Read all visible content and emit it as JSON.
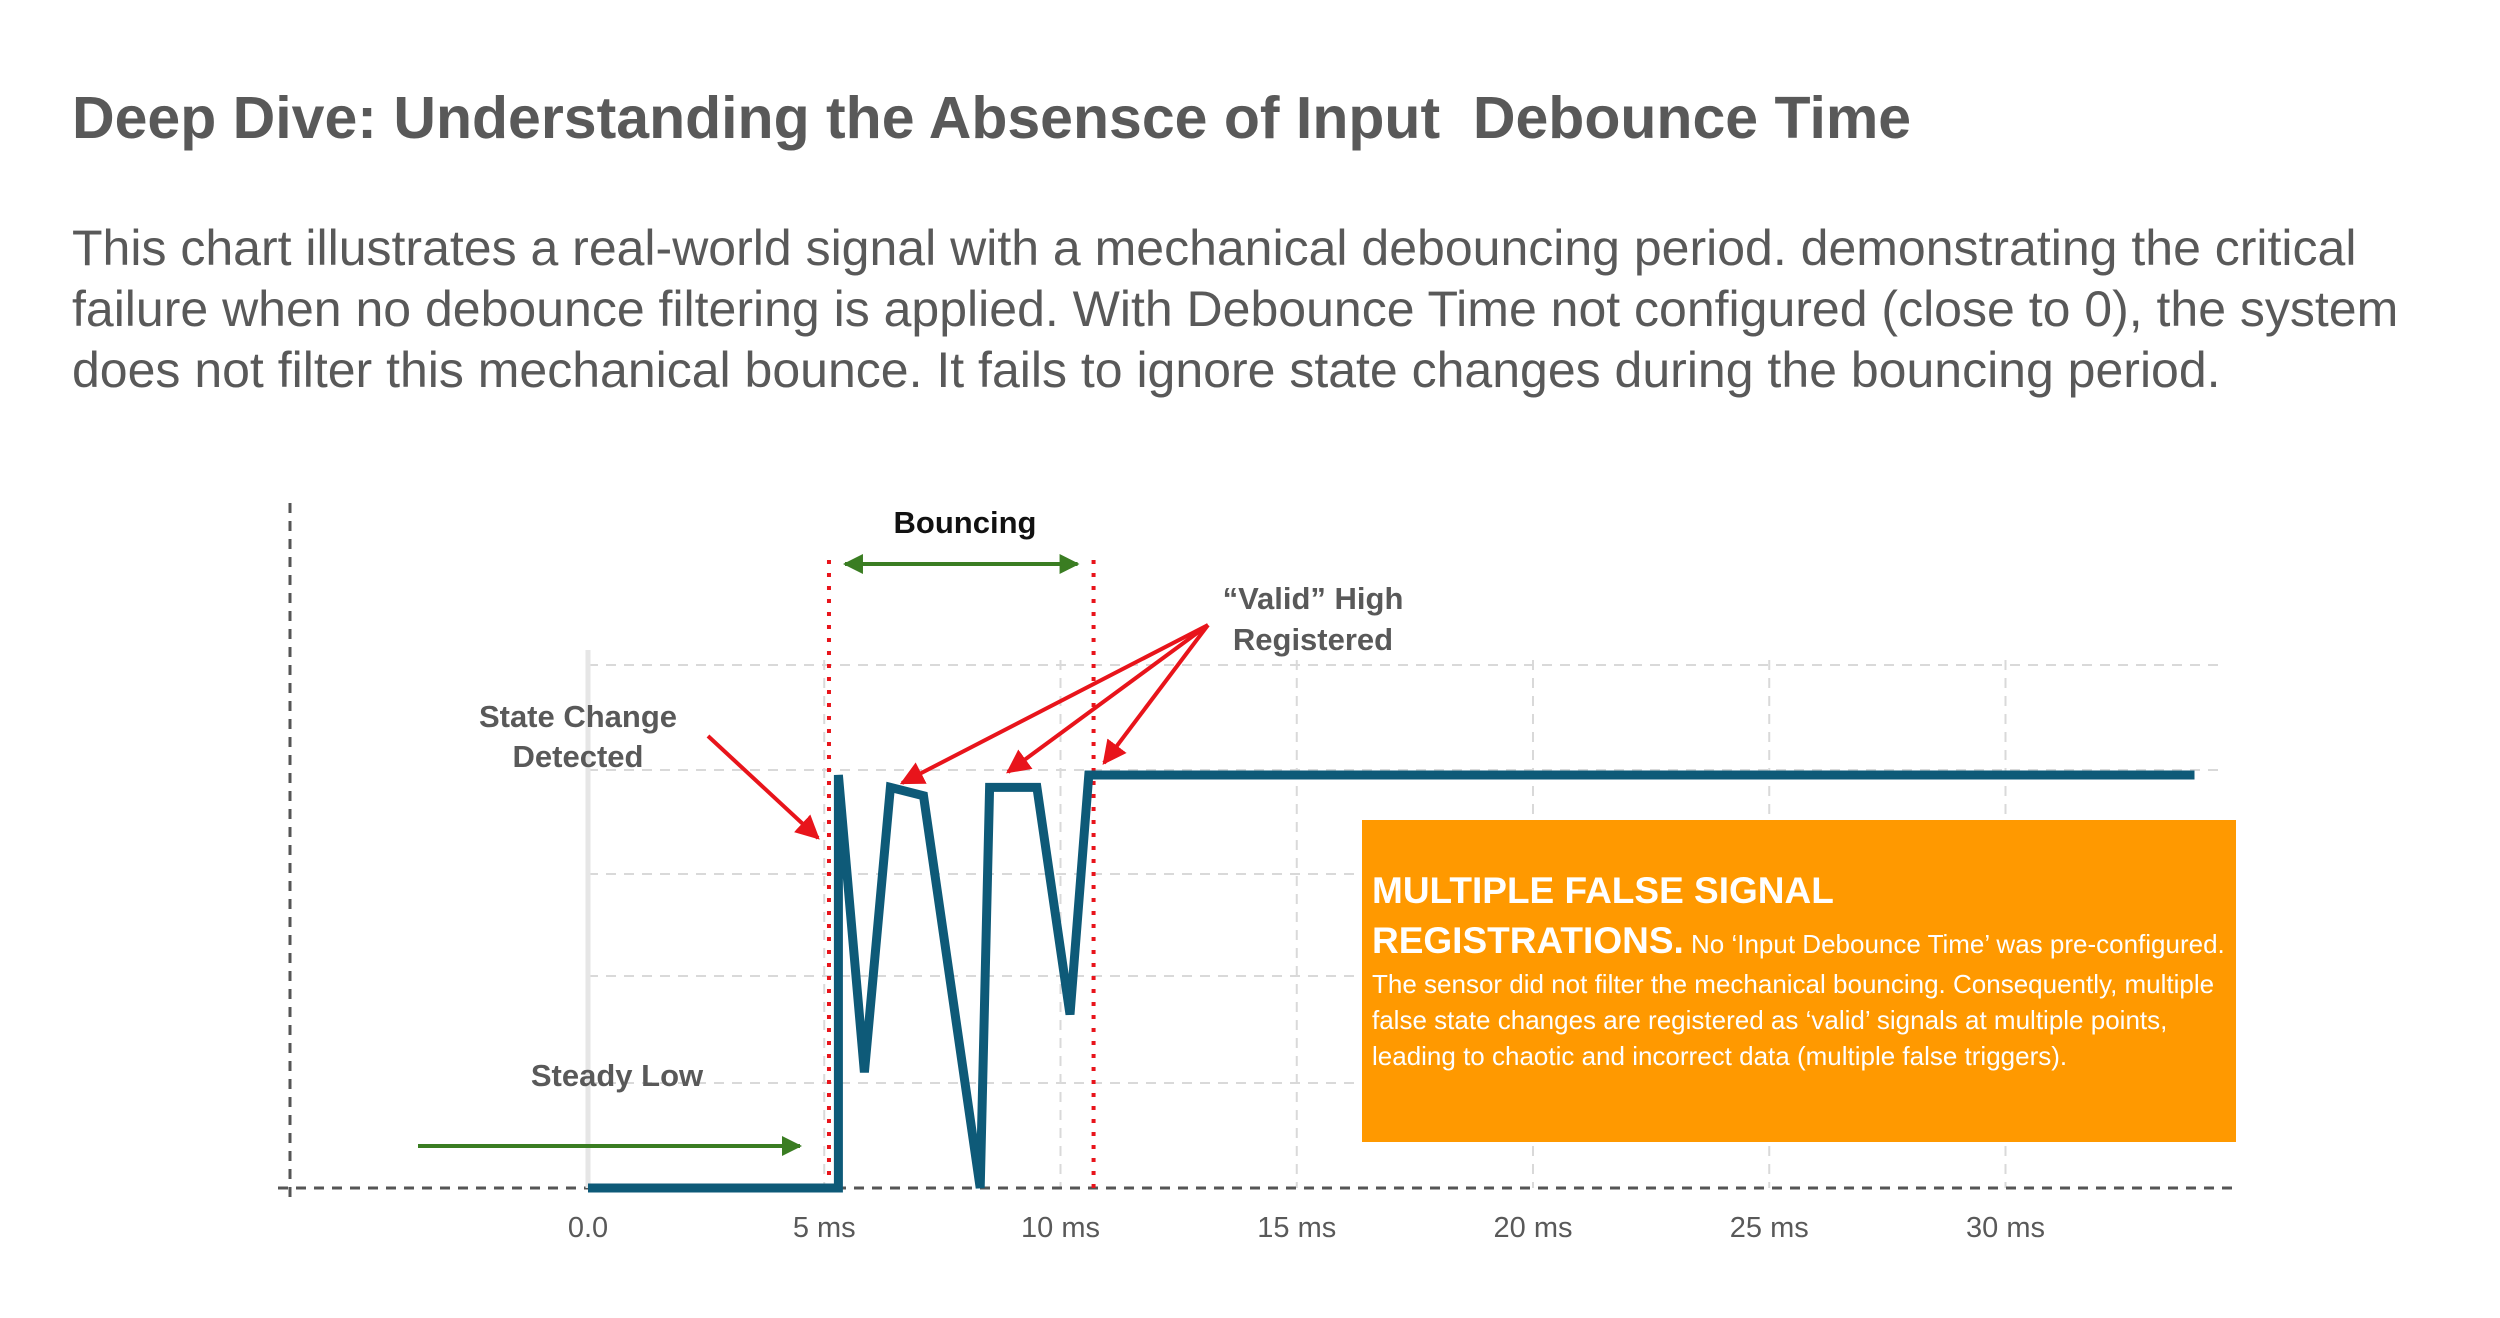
{
  "page": {
    "title": "Deep Dive: Understanding the Absensce of Input  Debounce Time",
    "intro": "This chart illustrates a real-world signal with a mechanical debouncing period. demonstrating the critical failure when no debounce filtering is applied. With Debounce Time not configured (close to 0), the system does not filter this mechanical bounce. It fails to ignore state changes during the bouncing period."
  },
  "chart_data": {
    "type": "line",
    "title": "",
    "xlabel": "",
    "ylabel": "",
    "x_tick_labels": [
      "0.0",
      "5 ms",
      "10 ms",
      "15 ms",
      "20 ms",
      "25 ms",
      "30 ms"
    ],
    "x_ticks": [
      0,
      5,
      10,
      15,
      20,
      25,
      30
    ],
    "xlim": [
      -6.3,
      34.5
    ],
    "ylim": [
      0,
      1
    ],
    "grid": true,
    "series": [
      {
        "name": "",
        "color": "#0e5a78",
        "x": [
          0,
          5.3,
          5.3,
          5.85,
          6.4,
          7.1,
          8.3,
          8.5,
          9.5,
          10.2,
          10.6,
          34
        ],
        "y": [
          0,
          0,
          1,
          0.28,
          0.97,
          0.95,
          0,
          0.97,
          0.97,
          0.42,
          1,
          1
        ]
      }
    ],
    "markers": [
      {
        "label": "Bouncing",
        "x_start": 5.1,
        "x_end": 10.7,
        "line_color": "#e8141b",
        "arrow_color": "#3a7d22"
      }
    ],
    "annotations": {
      "bouncing": "Bouncing",
      "valid_high": [
        "“Valid” High",
        "Registered"
      ],
      "state_change": [
        "State Change",
        "Detected"
      ],
      "steady_low": "Steady Low"
    },
    "colors": {
      "signal": "#0e5a78",
      "red": "#e8141b",
      "green": "#3a7d22",
      "callout": "#ff9900",
      "text": "#595959"
    }
  },
  "callout": {
    "heading_line1": "MULTIPLE FALSE SIGNAL",
    "heading_line2": "REGISTRATIONS.",
    "body": " No ‘Input Debounce Time’ was pre-configured. The sensor did not filter the mechanical bouncing. Consequently, multiple false state changes are registered as ‘valid’ signals at multiple points, leading to chaotic and incorrect data (multiple false triggers)."
  }
}
